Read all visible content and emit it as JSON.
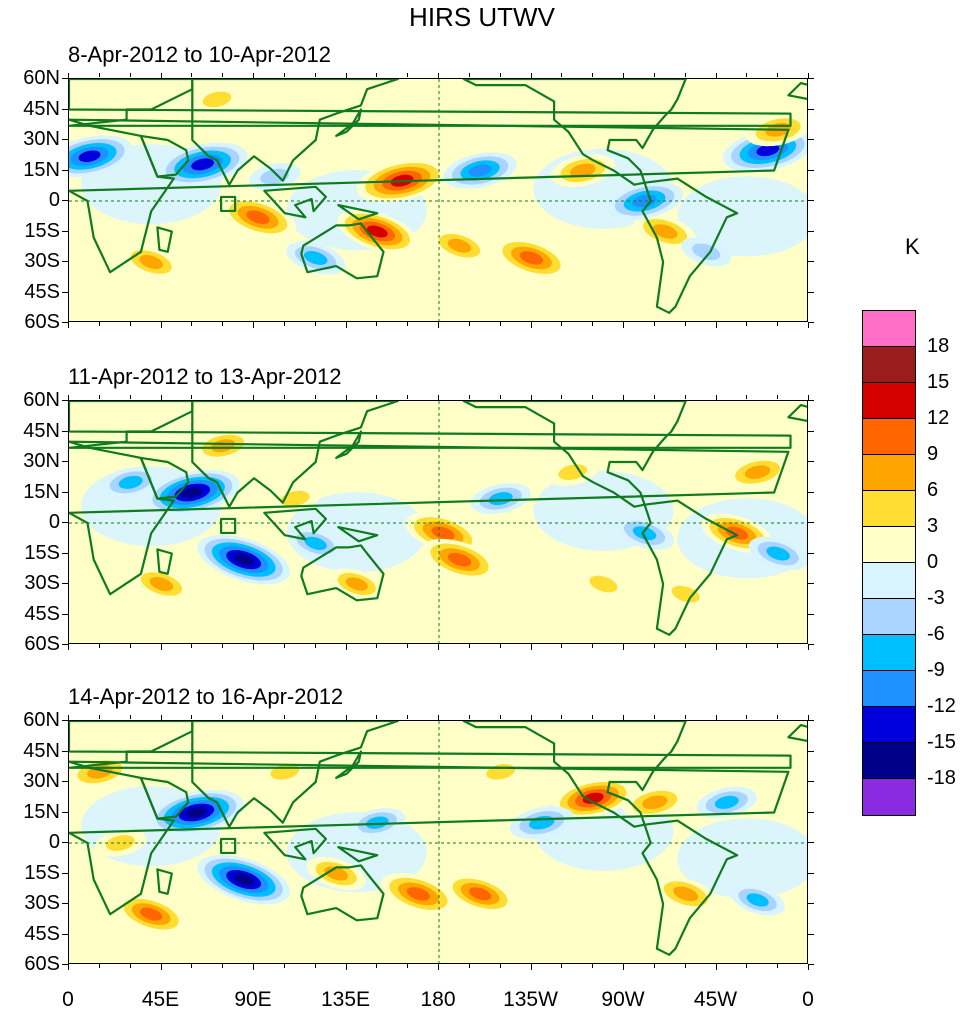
{
  "chart_data": {
    "type": "heatmap",
    "title": "HIRS UTWV",
    "variable": "HIRS UTWV",
    "units": "K",
    "xlabel": "",
    "ylabel": "",
    "x_ticks": [
      "0",
      "45E",
      "90E",
      "135E",
      "180",
      "135W",
      "90W",
      "45W",
      "0"
    ],
    "y_ticks": [
      "60N",
      "45N",
      "30N",
      "15N",
      "0",
      "15S",
      "30S",
      "45S",
      "60S"
    ],
    "lon_range": [
      0,
      360
    ],
    "lat_range": [
      -60,
      60
    ],
    "panels": [
      {
        "title": "8-Apr-2012 to 10-Apr-2012",
        "anomalies": [
          {
            "lon": 10,
            "lat": 22,
            "value": -14
          },
          {
            "lon": 65,
            "lat": 18,
            "value": -15
          },
          {
            "lon": 72,
            "lat": 50,
            "value": 6
          },
          {
            "lon": 92,
            "lat": -8,
            "value": 12
          },
          {
            "lon": 100,
            "lat": 12,
            "value": -6
          },
          {
            "lon": 150,
            "lat": -15,
            "value": 13
          },
          {
            "lon": 162,
            "lat": 10,
            "value": 15
          },
          {
            "lon": 200,
            "lat": 15,
            "value": -11
          },
          {
            "lon": 225,
            "lat": -28,
            "value": 12
          },
          {
            "lon": 250,
            "lat": 15,
            "value": 9
          },
          {
            "lon": 290,
            "lat": -15,
            "value": 9
          },
          {
            "lon": 340,
            "lat": 25,
            "value": -15
          },
          {
            "lon": 345,
            "lat": 35,
            "value": 9
          },
          {
            "lon": 40,
            "lat": -30,
            "value": 8
          },
          {
            "lon": 120,
            "lat": -28,
            "value": -8
          },
          {
            "lon": 280,
            "lat": 0,
            "value": -12
          },
          {
            "lon": 310,
            "lat": -25,
            "value": -6
          },
          {
            "lon": 190,
            "lat": -22,
            "value": 8
          }
        ]
      },
      {
        "title": "11-Apr-2012 to 13-Apr-2012",
        "anomalies": [
          {
            "lon": 60,
            "lat": 15,
            "value": -16
          },
          {
            "lon": 75,
            "lat": 38,
            "value": 8
          },
          {
            "lon": 85,
            "lat": -18,
            "value": -16
          },
          {
            "lon": 110,
            "lat": 12,
            "value": 6
          },
          {
            "lon": 182,
            "lat": -5,
            "value": 12
          },
          {
            "lon": 190,
            "lat": -18,
            "value": 12
          },
          {
            "lon": 45,
            "lat": -30,
            "value": 8
          },
          {
            "lon": 140,
            "lat": -30,
            "value": 7
          },
          {
            "lon": 210,
            "lat": 12,
            "value": -8
          },
          {
            "lon": 245,
            "lat": 25,
            "value": 6
          },
          {
            "lon": 280,
            "lat": -5,
            "value": -8
          },
          {
            "lon": 325,
            "lat": -5,
            "value": 11
          },
          {
            "lon": 335,
            "lat": 25,
            "value": 9
          },
          {
            "lon": 30,
            "lat": 20,
            "value": -8
          },
          {
            "lon": 120,
            "lat": -10,
            "value": -7
          },
          {
            "lon": 260,
            "lat": -30,
            "value": 6
          },
          {
            "lon": 300,
            "lat": -35,
            "value": 6
          },
          {
            "lon": 345,
            "lat": -15,
            "value": -8
          }
        ]
      },
      {
        "title": "14-Apr-2012 to 16-Apr-2012",
        "anomalies": [
          {
            "lon": 15,
            "lat": 35,
            "value": 9
          },
          {
            "lon": 62,
            "lat": 15,
            "value": -16
          },
          {
            "lon": 85,
            "lat": -18,
            "value": -16
          },
          {
            "lon": 40,
            "lat": -35,
            "value": 11
          },
          {
            "lon": 130,
            "lat": -15,
            "value": 8
          },
          {
            "lon": 170,
            "lat": -25,
            "value": 12
          },
          {
            "lon": 200,
            "lat": -25,
            "value": 11
          },
          {
            "lon": 255,
            "lat": 22,
            "value": 13
          },
          {
            "lon": 285,
            "lat": 20,
            "value": 9
          },
          {
            "lon": 150,
            "lat": 10,
            "value": -7
          },
          {
            "lon": 230,
            "lat": 10,
            "value": -9
          },
          {
            "lon": 300,
            "lat": -25,
            "value": 9
          },
          {
            "lon": 320,
            "lat": 20,
            "value": -8
          },
          {
            "lon": 105,
            "lat": 35,
            "value": 6
          },
          {
            "lon": 25,
            "lat": 0,
            "value": 6
          },
          {
            "lon": 335,
            "lat": -28,
            "value": -7
          },
          {
            "lon": 210,
            "lat": 35,
            "value": 6
          }
        ]
      }
    ],
    "colorbar": {
      "label": "K",
      "levels": [
        "18",
        "15",
        "12",
        "9",
        "6",
        "3",
        "0",
        "-3",
        "-6",
        "-9",
        "-12",
        "-15",
        "-18"
      ],
      "colors": [
        "#ff6ec7",
        "#9b1c1c",
        "#d40000",
        "#ff6600",
        "#ffa500",
        "#ffdd33",
        "#ffffc8",
        "#d8f4ff",
        "#a8d4ff",
        "#00bfff",
        "#1e90ff",
        "#0000dd",
        "#00008b",
        "#8a2be2"
      ]
    }
  }
}
